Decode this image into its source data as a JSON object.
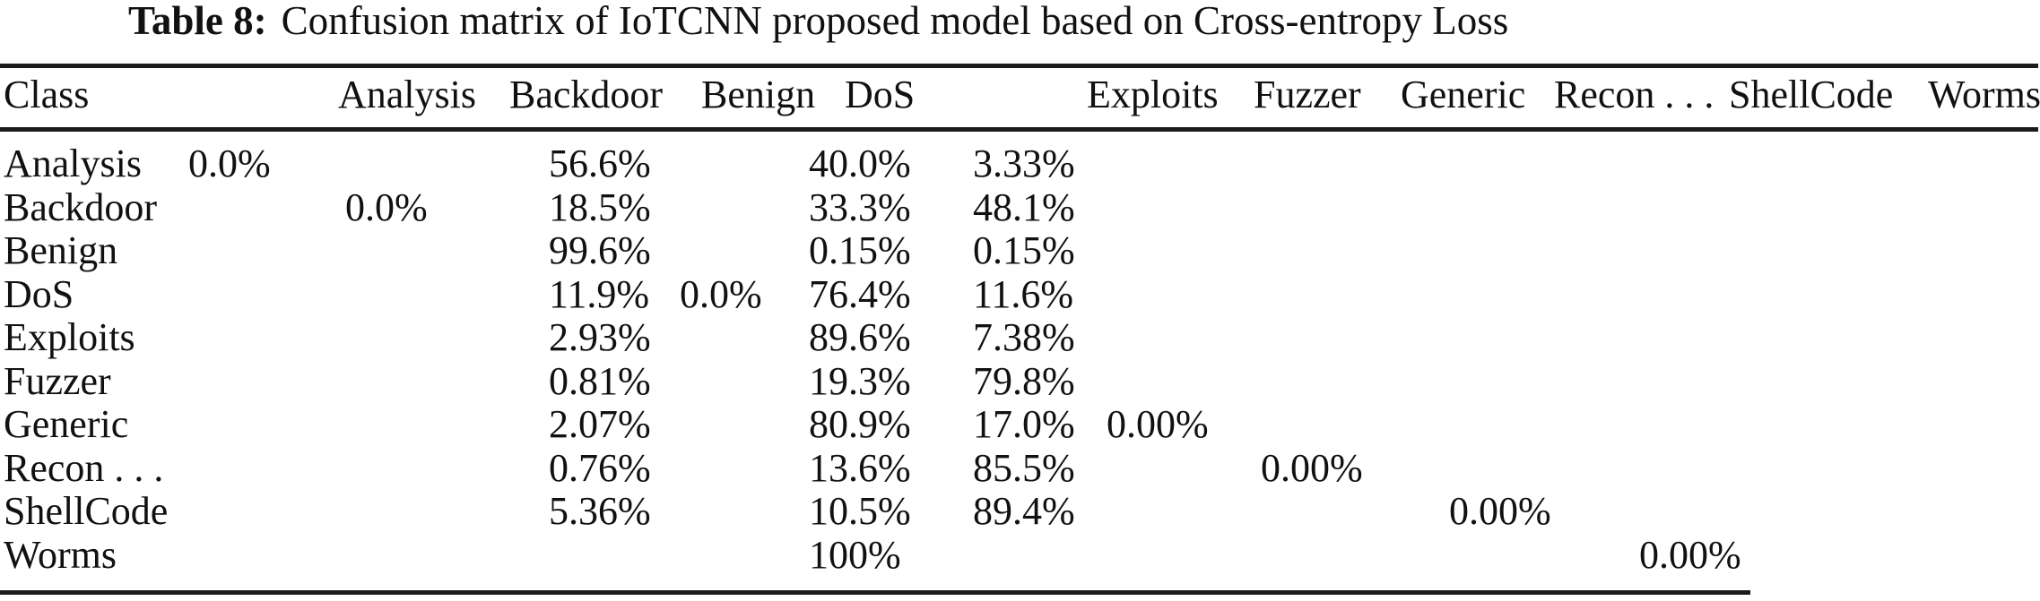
{
  "caption": {
    "label": "Table 8:",
    "text": "Confusion matrix of IoTCNN proposed model based on Cross-entropy Loss"
  },
  "table": {
    "column_headers": [
      "Class",
      "Analysis",
      "Backdoor",
      "Benign",
      "DoS",
      "Exploits",
      "Fuzzer",
      "Generic",
      "Recon . . .",
      "ShellCode",
      "Worms"
    ],
    "rows": [
      {
        "label": "Analysis",
        "cells": [
          {
            "slot": 0,
            "value": "0.0%"
          },
          {
            "slot": 2,
            "value": "56.6%"
          },
          {
            "slot": 4,
            "value": "40.0%"
          },
          {
            "slot": 5,
            "value": "3.33%"
          }
        ]
      },
      {
        "label": "Backdoor",
        "cells": [
          {
            "slot": 1,
            "value": "0.0%"
          },
          {
            "slot": 2,
            "value": "18.5%"
          },
          {
            "slot": 4,
            "value": "33.3%"
          },
          {
            "slot": 5,
            "value": "48.1%"
          }
        ]
      },
      {
        "label": "Benign",
        "cells": [
          {
            "slot": 2,
            "value": "99.6%"
          },
          {
            "slot": 4,
            "value": "0.15%"
          },
          {
            "slot": 5,
            "value": "0.15%"
          }
        ]
      },
      {
        "label": "DoS",
        "cells": [
          {
            "slot": 2,
            "value": "11.9%"
          },
          {
            "slot": 3,
            "value": "0.0%"
          },
          {
            "slot": 4,
            "value": "76.4%"
          },
          {
            "slot": 5,
            "value": "11.6%"
          }
        ]
      },
      {
        "label": "Exploits",
        "cells": [
          {
            "slot": 2,
            "value": "2.93%"
          },
          {
            "slot": 4,
            "value": "89.6%"
          },
          {
            "slot": 5,
            "value": "7.38%"
          }
        ]
      },
      {
        "label": "Fuzzer",
        "cells": [
          {
            "slot": 2,
            "value": "0.81%"
          },
          {
            "slot": 4,
            "value": "19.3%"
          },
          {
            "slot": 5,
            "value": "79.8%"
          }
        ]
      },
      {
        "label": "Generic",
        "cells": [
          {
            "slot": 2,
            "value": "2.07%"
          },
          {
            "slot": 4,
            "value": "80.9%"
          },
          {
            "slot": 5,
            "value": "17.0%"
          },
          {
            "slot": 6,
            "value": "0.00%"
          }
        ]
      },
      {
        "label": "Recon . . .",
        "cells": [
          {
            "slot": 2,
            "value": "0.76%"
          },
          {
            "slot": 4,
            "value": "13.6%"
          },
          {
            "slot": 5,
            "value": "85.5%"
          },
          {
            "slot": 7,
            "value": "0.00%"
          }
        ]
      },
      {
        "label": "ShellCode",
        "cells": [
          {
            "slot": 2,
            "value": "5.36%"
          },
          {
            "slot": 4,
            "value": "10.5%"
          },
          {
            "slot": 5,
            "value": "89.4%"
          },
          {
            "slot": 8,
            "value": "0.00%"
          }
        ]
      },
      {
        "label": "Worms",
        "cells": [
          {
            "slot": 4,
            "value": "100%"
          },
          {
            "slot": 9,
            "value": "0.00%"
          }
        ]
      }
    ]
  },
  "colors": {
    "background": "#ffffff",
    "text": "#111111",
    "rule": "#1b1b1b"
  }
}
